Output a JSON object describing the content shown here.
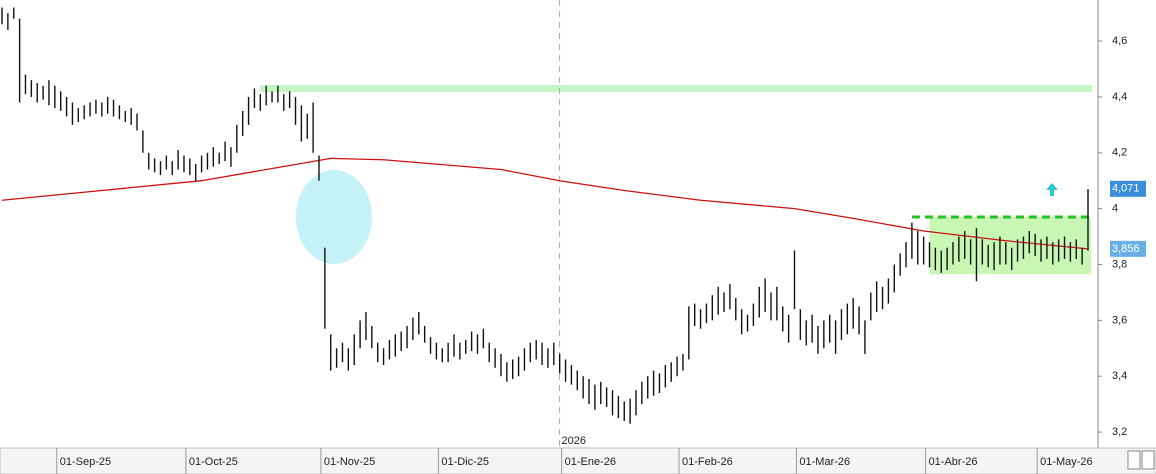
{
  "chart_data": {
    "type": "ohlc",
    "categories": [
      null,
      null,
      null,
      null,
      null,
      null,
      null,
      null,
      null,
      null,
      "01-Sep-25",
      null,
      null,
      null,
      null,
      null,
      null,
      null,
      null,
      null,
      null,
      null,
      null,
      null,
      null,
      null,
      null,
      null,
      null,
      null,
      null,
      null,
      "01-Oct-25",
      null,
      null,
      null,
      null,
      null,
      null,
      null,
      null,
      null,
      null,
      null,
      null,
      null,
      null,
      null,
      null,
      null,
      null,
      null,
      null,
      null,
      null,
      "01-Nov-25",
      null,
      null,
      null,
      null,
      null,
      null,
      null,
      null,
      null,
      null,
      null,
      null,
      null,
      null,
      null,
      null,
      null,
      null,
      null,
      "01-Dic-25",
      null,
      null,
      null,
      null,
      null,
      null,
      null,
      null,
      null,
      null,
      null,
      null,
      null,
      null,
      null,
      null,
      null,
      null,
      null,
      null,
      "01-Ene-26",
      null,
      null,
      null,
      null,
      null,
      null,
      null,
      null,
      null,
      null,
      null,
      null,
      null,
      null,
      null,
      null,
      null,
      null,
      null,
      "01-Feb-26",
      null,
      null,
      null,
      null,
      null,
      null,
      null,
      null,
      null,
      null,
      null,
      null,
      null,
      null,
      null,
      null,
      null,
      null,
      null,
      "01-Mar-26",
      null,
      null,
      null,
      null,
      null,
      null,
      null,
      null,
      null,
      null,
      null,
      null,
      null,
      null,
      null,
      null,
      null,
      null,
      null,
      null,
      null,
      "01-Abr-26",
      null,
      null,
      null,
      null,
      null,
      null,
      null,
      null,
      null,
      null,
      null,
      null,
      null,
      null,
      null,
      null,
      null,
      null,
      "01-May-26",
      null,
      null,
      null,
      null,
      null,
      null,
      null,
      null
    ],
    "high": [
      4.72,
      4.7,
      4.72,
      4.68,
      4.48,
      4.46,
      4.45,
      4.44,
      4.46,
      4.44,
      4.42,
      4.4,
      4.38,
      4.36,
      4.37,
      4.38,
      4.39,
      4.38,
      4.4,
      4.39,
      4.37,
      4.35,
      4.36,
      4.34,
      4.28,
      4.2,
      4.18,
      4.17,
      4.19,
      4.17,
      4.21,
      4.19,
      4.18,
      4.16,
      4.19,
      4.2,
      4.22,
      4.2,
      4.24,
      4.22,
      4.3,
      4.35,
      4.4,
      4.43,
      4.41,
      4.44,
      4.42,
      4.44,
      4.41,
      4.42,
      4.4,
      4.37,
      4.34,
      4.38,
      4.19,
      3.86,
      3.55,
      3.5,
      3.52,
      3.5,
      3.55,
      3.6,
      3.63,
      3.58,
      3.52,
      3.5,
      3.53,
      3.55,
      3.56,
      3.58,
      3.61,
      3.63,
      3.58,
      3.54,
      3.52,
      3.5,
      3.52,
      3.55,
      3.52,
      3.53,
      3.56,
      3.55,
      3.57,
      3.52,
      3.5,
      3.48,
      3.45,
      3.46,
      3.47,
      3.5,
      3.52,
      3.53,
      3.52,
      3.5,
      3.52,
      3.48,
      3.46,
      3.44,
      3.42,
      3.4,
      3.39,
      3.37,
      3.38,
      3.36,
      3.35,
      3.33,
      3.31,
      3.32,
      3.35,
      3.38,
      3.4,
      3.42,
      3.41,
      3.44,
      3.45,
      3.47,
      3.48,
      3.65,
      3.66,
      3.64,
      3.66,
      3.69,
      3.72,
      3.7,
      3.73,
      3.68,
      3.64,
      3.62,
      3.66,
      3.72,
      3.75,
      3.7,
      3.72,
      3.65,
      3.62,
      3.85,
      3.64,
      3.6,
      3.62,
      3.58,
      3.6,
      3.62,
      3.6,
      3.64,
      3.66,
      3.68,
      3.65,
      3.6,
      3.7,
      3.74,
      3.72,
      3.75,
      3.8,
      3.84,
      3.88,
      3.95,
      3.92,
      3.9,
      3.88,
      3.86,
      3.85,
      3.86,
      3.88,
      3.9,
      3.92,
      3.89,
      3.93,
      3.89,
      3.87,
      3.88,
      3.9,
      3.88,
      3.86,
      3.89,
      3.9,
      3.92,
      3.91,
      3.89,
      3.9,
      3.88,
      3.89,
      3.9,
      3.88,
      3.89,
      3.86,
      4.07
    ],
    "low": [
      4.66,
      4.64,
      4.68,
      4.38,
      4.41,
      4.4,
      4.38,
      4.39,
      4.37,
      4.36,
      4.35,
      4.33,
      4.3,
      4.31,
      4.32,
      4.33,
      4.34,
      4.33,
      4.34,
      4.33,
      4.32,
      4.31,
      4.3,
      4.28,
      4.2,
      4.14,
      4.13,
      4.12,
      4.14,
      4.12,
      4.14,
      4.13,
      4.12,
      4.1,
      4.13,
      4.14,
      4.15,
      4.16,
      4.17,
      4.15,
      4.2,
      4.26,
      4.3,
      4.36,
      4.35,
      4.37,
      4.38,
      4.38,
      4.35,
      4.36,
      4.3,
      4.24,
      4.25,
      4.2,
      4.1,
      3.57,
      3.42,
      3.43,
      3.45,
      3.42,
      3.44,
      3.5,
      3.53,
      3.5,
      3.45,
      3.44,
      3.46,
      3.47,
      3.49,
      3.5,
      3.53,
      3.55,
      3.52,
      3.48,
      3.46,
      3.45,
      3.45,
      3.47,
      3.46,
      3.48,
      3.49,
      3.48,
      3.5,
      3.45,
      3.43,
      3.4,
      3.38,
      3.39,
      3.4,
      3.42,
      3.45,
      3.46,
      3.44,
      3.43,
      3.44,
      3.41,
      3.38,
      3.37,
      3.35,
      3.32,
      3.3,
      3.28,
      3.3,
      3.29,
      3.26,
      3.25,
      3.24,
      3.23,
      3.26,
      3.3,
      3.32,
      3.33,
      3.34,
      3.36,
      3.38,
      3.4,
      3.42,
      3.46,
      3.58,
      3.57,
      3.59,
      3.6,
      3.62,
      3.63,
      3.64,
      3.6,
      3.55,
      3.56,
      3.58,
      3.61,
      3.63,
      3.6,
      3.6,
      3.56,
      3.52,
      3.64,
      3.53,
      3.51,
      3.52,
      3.48,
      3.5,
      3.52,
      3.48,
      3.53,
      3.55,
      3.57,
      3.55,
      3.48,
      3.6,
      3.63,
      3.64,
      3.66,
      3.7,
      3.76,
      3.79,
      3.82,
      3.8,
      3.8,
      3.79,
      3.78,
      3.77,
      3.78,
      3.8,
      3.81,
      3.82,
      3.8,
      3.74,
      3.8,
      3.79,
      3.78,
      3.8,
      3.8,
      3.78,
      3.81,
      3.82,
      3.84,
      3.83,
      3.81,
      3.82,
      3.8,
      3.81,
      3.82,
      3.81,
      3.82,
      3.8,
      3.85
    ],
    "color": "#111111",
    "ylim": [
      3.143,
      4.747
    ],
    "yticks": [
      {
        "value": 3.2,
        "label": "3,2"
      },
      {
        "value": 3.4,
        "label": "3,4"
      },
      {
        "value": 3.6,
        "label": "3,6"
      },
      {
        "value": 3.8,
        "label": "3,8"
      },
      4,
      {
        "value": 4.2,
        "label": "4,2"
      },
      {
        "value": 4.4,
        "label": "4,4"
      },
      {
        "value": 4.6,
        "label": "4,6"
      }
    ],
    "moving_average": {
      "color": "#cc1111",
      "x": [
        0,
        17,
        34,
        56,
        65,
        85,
        95,
        106,
        119,
        135,
        145,
        157,
        171,
        185
      ],
      "values": [
        4.03,
        4.065,
        4.1,
        4.18,
        4.175,
        4.14,
        4.1,
        4.065,
        4.03,
        4.0,
        3.965,
        3.92,
        3.885,
        3.856
      ]
    },
    "price_markers": [
      {
        "value": 4.071,
        "label": "4,071",
        "color": "#3a8fd8"
      },
      {
        "value": 3.856,
        "label": "3,856",
        "color": "#6aaee6"
      }
    ],
    "resistance": {
      "value": 4.43,
      "start": 44,
      "color": "#c6f5c6"
    },
    "support_zone": {
      "top": 3.97,
      "bottom": 3.765,
      "start": 158,
      "line_start": 155,
      "fill": "#c8f7b4",
      "line_color": "#22c322"
    },
    "year_label": "2026"
  }
}
